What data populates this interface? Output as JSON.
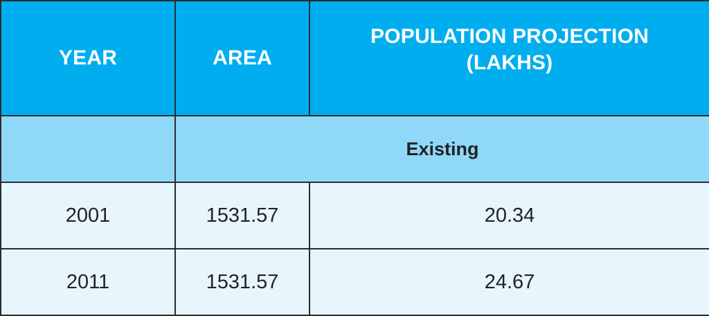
{
  "table": {
    "headers": {
      "year": "YEAR",
      "area": "AREA",
      "population_line1": "POPULATION PROJECTION",
      "population_line2": "(LAKHS)"
    },
    "section_label": "Existing",
    "rows": [
      {
        "year": "2001",
        "area": "1531.57",
        "population": "20.34"
      },
      {
        "year": "2011",
        "area": "1531.57",
        "population": "24.67"
      }
    ]
  },
  "colors": {
    "header_bg": "#00aeef",
    "subheader_bg": "#8fd8f8",
    "row_bg": "#e7f6fd",
    "border": "#2b2b2b"
  }
}
